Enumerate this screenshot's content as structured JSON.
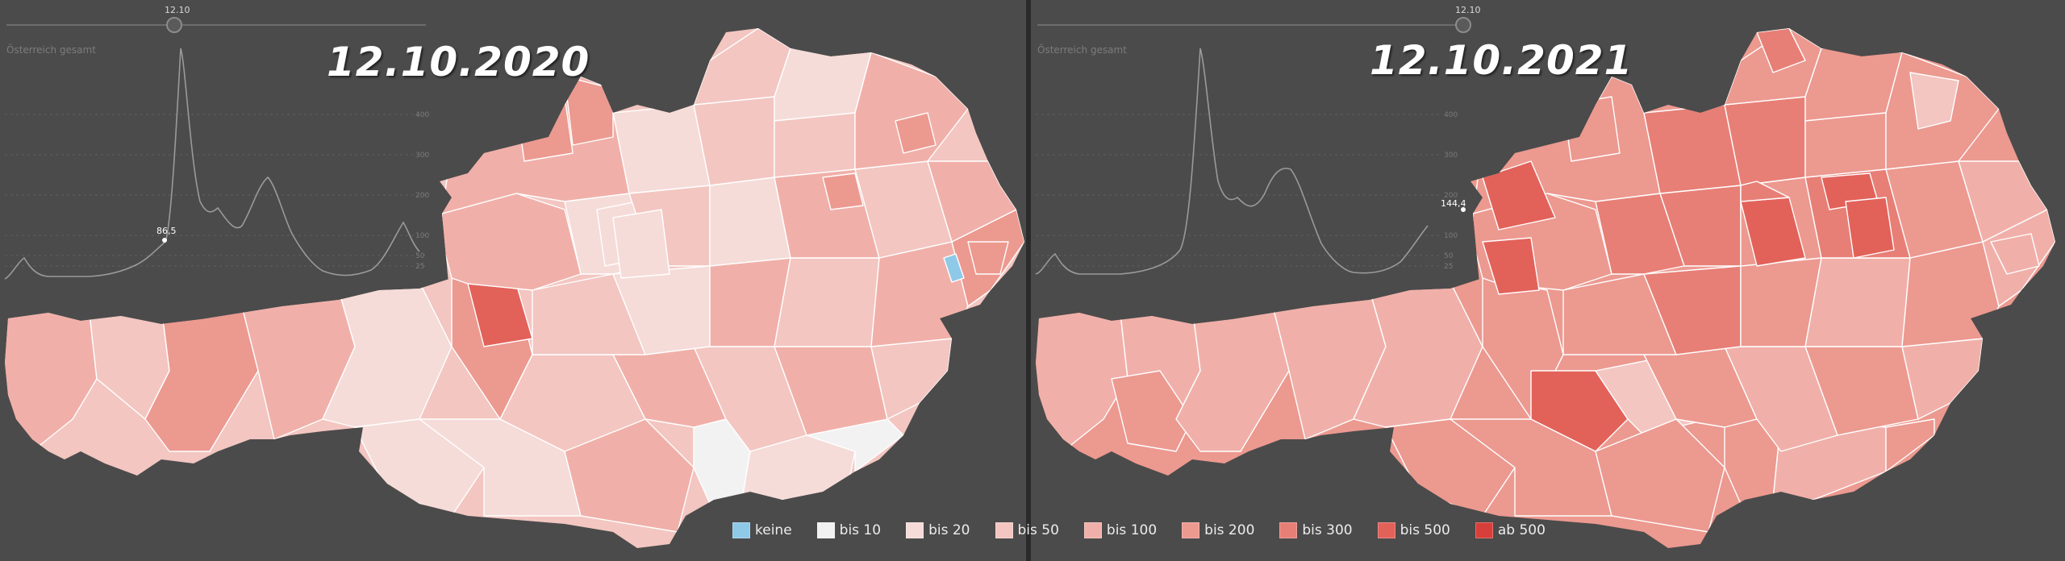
{
  "panels": [
    {
      "id": "left",
      "title": "12.10.2020",
      "slider_value": "12.10",
      "sub_label": "Österreich gesamt",
      "marker_value": "86,5",
      "axis_ticks": [
        "400",
        "300",
        "200",
        "100",
        "50",
        "25"
      ]
    },
    {
      "id": "right",
      "title": "12.10.2021",
      "slider_value": "12.10",
      "sub_label": "Österreich gesamt",
      "marker_value": "144,4",
      "axis_ticks": [
        "400",
        "300",
        "200",
        "100",
        "50",
        "25"
      ]
    }
  ],
  "legend": [
    {
      "label": "keine",
      "color": "#8ec9e8"
    },
    {
      "label": "bis 10",
      "color": "#f2f2f2"
    },
    {
      "label": "bis 20",
      "color": "#f5dcd9"
    },
    {
      "label": "bis 50",
      "color": "#f3c6c1"
    },
    {
      "label": "bis 100",
      "color": "#f0b0a9"
    },
    {
      "label": "bis 200",
      "color": "#ec9990"
    },
    {
      "label": "bis 300",
      "color": "#e77f76"
    },
    {
      "label": "bis 500",
      "color": "#e2625a"
    },
    {
      "label": "ab 500",
      "color": "#d73f3a"
    }
  ],
  "colors": {
    "background": "#4b4b4b",
    "outline": "#ffffff"
  }
}
